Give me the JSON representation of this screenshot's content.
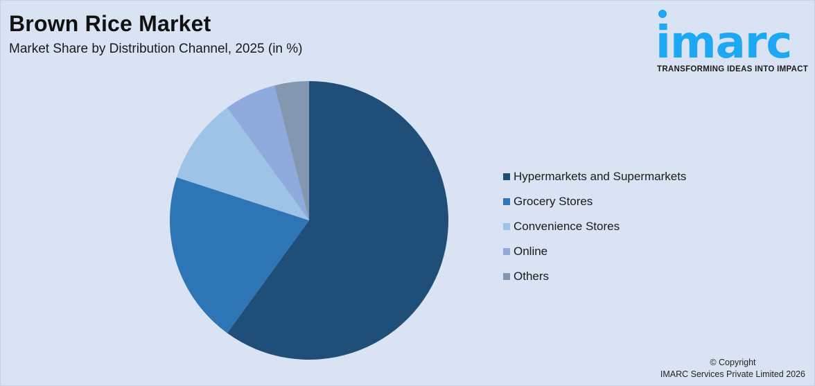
{
  "header": {
    "title": "Brown Rice Market",
    "subtitle": "Market Share by Distribution Channel, 2025 (in %)"
  },
  "logo": {
    "wordmark": "imarc",
    "tagline": "TRANSFORMING IDEAS INTO IMPACT",
    "color": "#1ea7f2"
  },
  "legend": {
    "items": [
      {
        "label": "Hypermarkets and Supermarkets",
        "color": "#1f4e79"
      },
      {
        "label": "Grocery Stores",
        "color": "#2e75b6"
      },
      {
        "label": "Convenience Stores",
        "color": "#9dc3e6"
      },
      {
        "label": "Online",
        "color": "#8faadc"
      },
      {
        "label": "Others",
        "color": "#8497b0"
      }
    ]
  },
  "footer": {
    "copyright": "© Copyright",
    "company": "IMARC Services Private Limited 2026"
  },
  "chart_data": {
    "type": "pie",
    "title": "Brown Rice Market",
    "subtitle": "Market Share by Distribution Channel, 2025 (in %)",
    "categories": [
      "Hypermarkets and Supermarkets",
      "Grocery Stores",
      "Convenience Stores",
      "Online",
      "Others"
    ],
    "values": [
      60,
      20,
      10,
      6,
      4
    ],
    "colors": [
      "#1f4e79",
      "#2e75b6",
      "#9dc3e6",
      "#8faadc",
      "#8497b0"
    ],
    "start_angle": "12 o'clock, clockwise",
    "legend_position": "right",
    "data_labels": false
  }
}
